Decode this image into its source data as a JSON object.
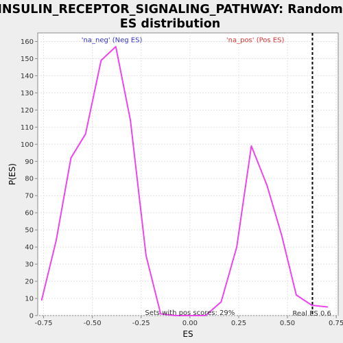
{
  "chart_data": {
    "type": "line",
    "title_lines": [
      "INSULIN_RECEPTOR_SIGNALING_PATHWAY: Random",
      "ES distribution"
    ],
    "xlabel": "ES",
    "ylabel": "P(ES)",
    "xlim": [
      -0.78,
      0.76
    ],
    "ylim": [
      0,
      165
    ],
    "x_ticks": [
      -0.75,
      -0.5,
      -0.25,
      0.0,
      0.25,
      0.5,
      0.75
    ],
    "x_tick_labels": [
      "-0.75",
      "-0.50",
      "-0.25",
      "0.00",
      "0.25",
      "0.50",
      "0.75"
    ],
    "y_ticks": [
      0,
      10,
      20,
      30,
      40,
      50,
      60,
      70,
      80,
      90,
      100,
      110,
      120,
      130,
      140,
      150,
      160
    ],
    "y_tick_labels": [
      "0",
      "10",
      "20",
      "30",
      "40",
      "50",
      "60",
      "70",
      "80",
      "90",
      "100",
      "110",
      "120",
      "130",
      "140",
      "150",
      "160"
    ],
    "grid": true,
    "series": [
      {
        "color": "#ee44ee",
        "x": [
          -0.76,
          -0.685,
          -0.61,
          -0.535,
          -0.455,
          -0.38,
          -0.305,
          -0.225,
          -0.15,
          -0.075,
          0.0,
          0.08,
          0.16,
          0.24,
          0.315,
          0.395,
          0.47,
          0.545,
          0.625,
          0.705
        ],
        "y": [
          9,
          44,
          92,
          106,
          149,
          157,
          114,
          35,
          1,
          0,
          0,
          0,
          8,
          40,
          99,
          76,
          47,
          12,
          6,
          5
        ]
      }
    ],
    "annotations": [
      {
        "text": "'na_neg' (Neg ES)",
        "color": "#3333cc",
        "x": -0.4,
        "y": 160
      },
      {
        "text": "'na_pos' (Pos ES)",
        "color": "#dd3333",
        "x": 0.335,
        "y": 160
      },
      {
        "text": "Sets with pos scores: 29%",
        "color": "#333333",
        "x": 0.0,
        "y": 1
      },
      {
        "text": "Real ES 0.6",
        "color": "#333333",
        "x": 0.625,
        "y": 0
      }
    ],
    "real_es": 0.628,
    "real_es_color": "#000000"
  }
}
